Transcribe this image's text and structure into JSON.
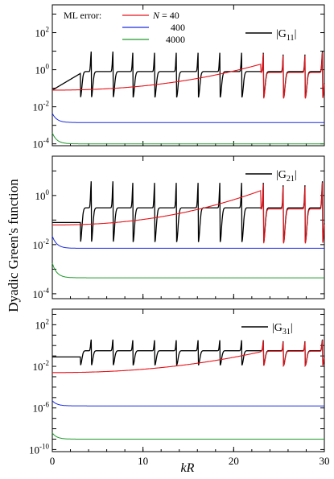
{
  "chart_data": {
    "type": "line",
    "ylabel": "Dyadic Green's function",
    "xlabel_main": "k",
    "xlabel_sub": "R",
    "legend": {
      "heading": "ML error:",
      "entries": [
        {
          "prefix": "N",
          "text": " = 40",
          "color": "#e8141b"
        },
        {
          "prefix": "",
          "text": "400",
          "color": "#1c2de0"
        },
        {
          "prefix": "",
          "text": "4000",
          "color": "#1e9a2a"
        }
      ]
    },
    "colors": {
      "exact": "#000000",
      "N40": "#e8141b",
      "N400": "#1c2de0",
      "N4000": "#1e9a2a"
    },
    "x_ticks": [
      0,
      10,
      20,
      30
    ],
    "xlim": [
      0,
      30
    ],
    "panels": [
      {
        "component": "G",
        "sub": "11",
        "yscale": "log",
        "ylim_exp": [
          -4.1,
          3.5
        ],
        "y_ticks": [
          {
            "base": "10",
            "exp": "2",
            "e": 2
          },
          {
            "base": "10",
            "exp": "0",
            "e": 0
          },
          {
            "base": "10",
            "exp": "-2",
            "e": -2
          },
          {
            "base": "10",
            "exp": "-4",
            "e": -4
          }
        ],
        "resonances_kR": [
          3.1,
          4.3,
          6.7,
          8.9,
          11.3,
          13.7,
          16.1,
          18.5,
          20.9,
          23.3,
          25.5,
          27.9,
          29.8
        ],
        "series_log10": {
          "exact_baseline": -0.1,
          "N40": {
            "at_0": -1.1,
            "at_23": 0.3
          },
          "N400": -2.85,
          "N4000": -4.0
        }
      },
      {
        "component": "G",
        "sub": "21",
        "yscale": "log",
        "ylim_exp": [
          -4.2,
          1.6
        ],
        "y_ticks": [
          {
            "base": "10",
            "exp": "0",
            "e": 0
          },
          {
            "base": "10",
            "exp": "-2",
            "e": -2
          },
          {
            "base": "10",
            "exp": "-4",
            "e": -4
          }
        ],
        "resonances_kR": [
          3.1,
          4.3,
          6.7,
          8.9,
          11.3,
          13.7,
          16.1,
          18.5,
          20.9,
          23.3,
          25.5,
          27.9,
          29.8
        ],
        "series_log10": {
          "exact_baseline": -0.5,
          "N40": {
            "at_0": -1.2,
            "at_23": 0.2
          },
          "N400": -2.15,
          "N4000": -3.35
        }
      },
      {
        "component": "G",
        "sub": "31",
        "yscale": "log",
        "ylim_exp": [
          -10.2,
          3.5
        ],
        "y_ticks": [
          {
            "base": "10",
            "exp": "2",
            "e": 2
          },
          {
            "base": "10",
            "exp": "-2",
            "e": -2
          },
          {
            "base": "10",
            "exp": "-6",
            "e": -6
          },
          {
            "base": "10",
            "exp": "-10",
            "e": -10
          }
        ],
        "resonances_kR": [
          3.1,
          4.3,
          6.7,
          8.9,
          11.3,
          13.7,
          16.1,
          18.5,
          20.9,
          23.3,
          25.5,
          27.9,
          29.8
        ],
        "series_log10": {
          "exact_baseline": -0.5,
          "N40": {
            "at_0": -2.6,
            "at_23": -0.6
          },
          "N400": -5.8,
          "N4000": -9.0
        }
      }
    ]
  }
}
